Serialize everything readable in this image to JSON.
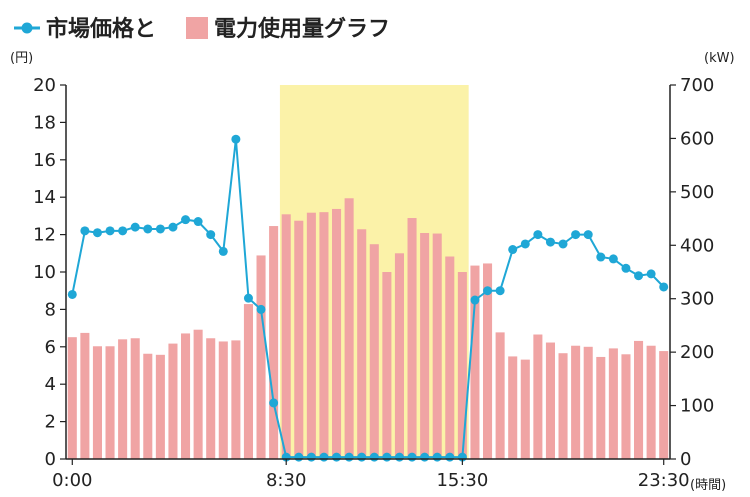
{
  "chart_data": {
    "type": "bar+line",
    "legend": {
      "price_label": "市場価格と",
      "usage_label": "電力使用量グラフ",
      "placement": "top-left"
    },
    "left_axis": {
      "unit": "(円)",
      "range": [
        0,
        20
      ],
      "ticks": [
        "20",
        "18",
        "16",
        "14",
        "12",
        "10",
        "8",
        "6",
        "4",
        "2",
        "0"
      ]
    },
    "right_axis": {
      "unit": "(kW)",
      "range": [
        0,
        700
      ],
      "ticks": [
        "700",
        "600",
        "500",
        "400",
        "300",
        "200",
        "100",
        "0"
      ]
    },
    "x_axis": {
      "unit": "(時間)",
      "tick_labels": [
        "0:00",
        "8:30",
        "15:30",
        "23:30"
      ],
      "tick_slots": [
        0,
        17,
        31,
        47
      ]
    },
    "highlight": {
      "from_slot": 17,
      "to_slot": 31,
      "color": "#fbf2a8"
    },
    "colors": {
      "bars": "#f0a4a4",
      "line": "#1fa7d6"
    },
    "series": [
      {
        "name": "電力使用量",
        "axis": "right",
        "type": "bar",
        "values": [
          228,
          236,
          211,
          211,
          224,
          226,
          197,
          195,
          216,
          235,
          242,
          226,
          220,
          222,
          290,
          381,
          436,
          458,
          446,
          461,
          462,
          468,
          488,
          430,
          402,
          350,
          385,
          451,
          423,
          422,
          379,
          350,
          362,
          366,
          237,
          192,
          186,
          233,
          218,
          198,
          212,
          210,
          191,
          207,
          196,
          221,
          212,
          202
        ]
      },
      {
        "name": "市場価格",
        "axis": "left",
        "type": "line",
        "values": [
          8.8,
          12.2,
          12.1,
          12.2,
          12.2,
          12.4,
          12.3,
          12.3,
          12.4,
          12.8,
          12.7,
          12.0,
          11.1,
          17.1,
          8.6,
          8.0,
          3.0,
          0.1,
          0.1,
          0.1,
          0.1,
          0.1,
          0.1,
          0.1,
          0.1,
          0.1,
          0.1,
          0.1,
          0.1,
          0.1,
          0.1,
          0.1,
          8.5,
          9.0,
          9.0,
          11.2,
          11.5,
          12.0,
          11.6,
          11.5,
          12.0,
          12.0,
          10.8,
          10.7,
          10.2,
          9.8,
          9.9,
          9.2
        ]
      }
    ]
  }
}
